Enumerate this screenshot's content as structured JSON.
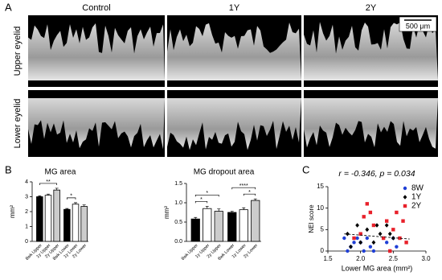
{
  "panel_labels": [
    "A",
    "B",
    "C"
  ],
  "images": {
    "column_labels": [
      "Control",
      "1Y",
      "2Y"
    ],
    "row_labels": [
      "Upper eyelid",
      "Lower eyelid"
    ],
    "scale_bar": "500 μm"
  },
  "chart_data": [
    {
      "type": "bar",
      "title": "MG area",
      "y_label": "mm²",
      "categories": [
        "8wk Upper",
        "1y Upper",
        "2y Upper",
        "8wk Lower",
        "1y Lower",
        "2y Lower"
      ],
      "values": [
        3.0,
        3.1,
        3.45,
        2.15,
        2.5,
        2.35
      ],
      "errors": [
        0.06,
        0.08,
        0.12,
        0.06,
        0.1,
        0.1
      ],
      "colors": [
        "#000000",
        "#ffffff",
        "#cccccc",
        "#000000",
        "#ffffff",
        "#cccccc"
      ],
      "ylim": [
        0,
        4
      ],
      "yticks": [
        0,
        1,
        2,
        3,
        4
      ],
      "significance": [
        {
          "pair": [
            0,
            2
          ],
          "label": "**"
        },
        {
          "pair": [
            3,
            4
          ],
          "label": "*"
        }
      ]
    },
    {
      "type": "bar",
      "title": "MG dropout area",
      "y_label": "mm²",
      "categories": [
        "8wk Upper",
        "1y Upper",
        "2y Upper",
        "8wk Lower",
        "1y Lower",
        "2y Lower"
      ],
      "values": [
        0.58,
        0.85,
        0.78,
        0.75,
        0.82,
        1.06
      ],
      "errors": [
        0.04,
        0.06,
        0.06,
        0.03,
        0.05,
        0.04
      ],
      "colors": [
        "#000000",
        "#ffffff",
        "#cccccc",
        "#000000",
        "#ffffff",
        "#cccccc"
      ],
      "ylim": [
        0,
        1.5
      ],
      "yticks": [
        {
          "value": 0,
          "label": "0.0"
        },
        {
          "value": 0.5,
          "label": "0.5"
        },
        {
          "value": 1,
          "label": "1.0"
        },
        {
          "value": 1.5,
          "label": "1.5"
        }
      ],
      "significance": [
        {
          "pair": [
            0,
            1
          ],
          "label": "*"
        },
        {
          "pair": [
            0,
            2
          ],
          "label": "*"
        },
        {
          "pair": [
            4,
            5
          ],
          "label": "*"
        },
        {
          "pair": [
            3,
            5
          ],
          "label": "****"
        }
      ]
    },
    {
      "type": "scatter",
      "title": "r = -0.346, p = 0.034",
      "x_label": "Lower MG area (mm²)",
      "y_label": "NEI score",
      "xlim": [
        1.5,
        3.0
      ],
      "xticks": [
        {
          "value": 1.5,
          "label": "1.5"
        },
        {
          "value": 2,
          "label": "2.0"
        },
        {
          "value": 2.5,
          "label": "2.5"
        },
        {
          "value": 3,
          "label": "3.0"
        }
      ],
      "ylim": [
        0,
        15
      ],
      "yticks": [
        0,
        5,
        10,
        15
      ],
      "series": [
        {
          "name": "8W",
          "color": "#1f3fd6",
          "marker": "circle",
          "x": [
            1.75,
            1.8,
            1.85,
            1.9,
            1.95,
            2.0,
            2.0,
            2.05,
            2.1,
            2.15,
            2.2,
            2.35,
            2.4,
            2.45,
            2.5,
            2.55
          ],
          "values": [
            3,
            0,
            1,
            2,
            3,
            2,
            4,
            0,
            3,
            1,
            0,
            3,
            2,
            0,
            3,
            1
          ]
        },
        {
          "name": "1Y",
          "color": "#000000",
          "marker": "diamond",
          "x": [
            1.8,
            1.85,
            1.95,
            2.0,
            2.1,
            2.2,
            2.25,
            2.3,
            2.4,
            2.45,
            2.5
          ],
          "values": [
            4,
            1,
            6,
            2,
            5,
            2,
            6,
            4,
            6,
            4,
            3
          ]
        },
        {
          "name": "2Y",
          "color": "#e8202a",
          "marker": "square",
          "x": [
            1.9,
            2.0,
            2.05,
            2.1,
            2.15,
            2.2,
            2.35,
            2.4,
            2.45,
            2.5,
            2.55,
            2.6,
            2.65,
            2.7
          ],
          "values": [
            3,
            4,
            8,
            11,
            9,
            6,
            3,
            7,
            0,
            5,
            9,
            3,
            7,
            2
          ]
        }
      ],
      "trend_line": {
        "x": [
          1.75,
          2.75
        ],
        "y": [
          4.0,
          2.8
        ]
      }
    }
  ]
}
